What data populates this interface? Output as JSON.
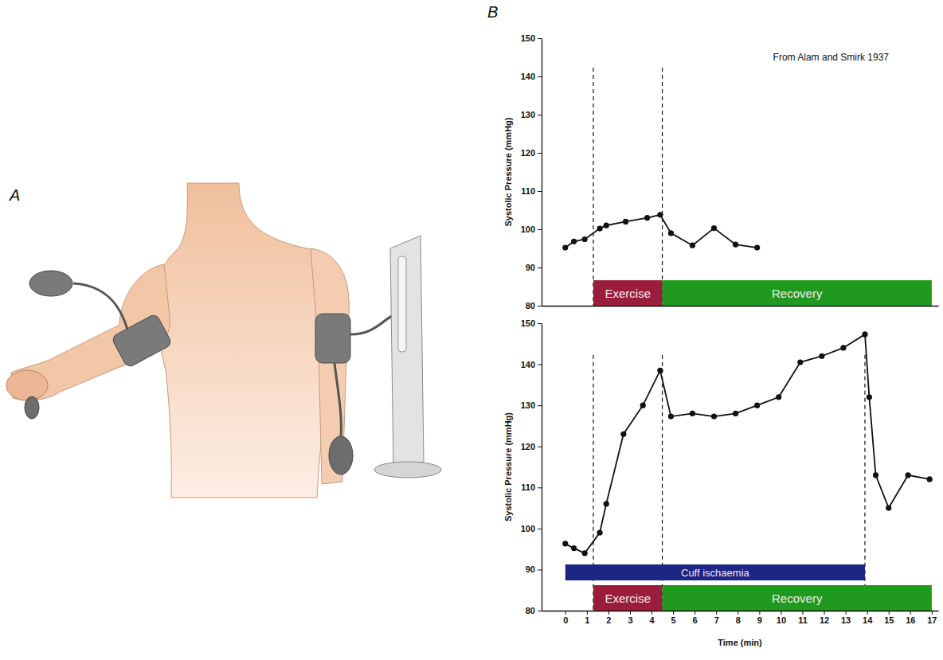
{
  "panel_labels": [
    "A",
    "B"
  ],
  "chart_data": [
    {
      "type": "line",
      "ylabel": "Systolic Pressure (mmHg)",
      "annotations": [
        "From Alam and Smirk 1937"
      ],
      "x": [
        0,
        0.4,
        0.9,
        1.6,
        1.9,
        2.8,
        3.8,
        4.4,
        4.9,
        5.9,
        6.9,
        7.9,
        8.9
      ],
      "values": [
        95.2,
        96.8,
        97.4,
        100.2,
        101,
        102,
        103,
        103.8,
        99,
        95.8,
        100.3,
        96,
        95.2
      ],
      "color": "#111111",
      "marker": "circle",
      "xlim": [
        -1.1,
        17.3
      ],
      "ylim": [
        80,
        150
      ],
      "yticks": [
        80,
        90,
        100,
        110,
        120,
        130,
        140,
        150
      ],
      "tick_labels": "y",
      "grid": false,
      "vlines": [
        1.3,
        4.5
      ],
      "phases": [
        {
          "label": "Exercise",
          "start": 1.3,
          "end": 4.5,
          "color": "#9b1d3c"
        },
        {
          "label": "Recovery",
          "start": 4.5,
          "end": 17,
          "color": "#1f9a1f"
        }
      ]
    },
    {
      "type": "line",
      "ylabel": "Systolic Pressure (mmHg)",
      "xlabel": "Time (min)",
      "x": [
        0,
        0.4,
        0.9,
        1.6,
        1.9,
        2.7,
        3.6,
        4.4,
        4.9,
        5.9,
        6.9,
        7.9,
        8.9,
        9.9,
        10.9,
        11.9,
        12.9,
        13.9,
        14.1,
        14.4,
        15,
        15.9,
        16.9
      ],
      "values": [
        96.3,
        95.2,
        94,
        99,
        106,
        123,
        130,
        138.5,
        127.3,
        128,
        127.3,
        128,
        130,
        132,
        140.5,
        142,
        144,
        147.3,
        132,
        113,
        105,
        113,
        112
      ],
      "color": "#111111",
      "marker": "circle",
      "xlim": [
        -1.1,
        17.3
      ],
      "ylim": [
        80,
        150
      ],
      "xticks": [
        0,
        1,
        2,
        3,
        4,
        5,
        6,
        7,
        8,
        9,
        10,
        11,
        12,
        13,
        14,
        15,
        16,
        17
      ],
      "yticks": [
        80,
        90,
        100,
        110,
        120,
        130,
        140,
        150
      ],
      "grid": false,
      "vlines": [
        1.3,
        4.5,
        13.9
      ],
      "phases": [
        {
          "label": "Exercise",
          "start": 1.3,
          "end": 4.5,
          "color": "#9b1d3c"
        },
        {
          "label": "Recovery",
          "start": 4.5,
          "end": 17,
          "color": "#1f9a1f"
        },
        {
          "label": "Cuff ischaemia",
          "start": 0,
          "end": 13.9,
          "color": "#1d2680"
        }
      ]
    }
  ]
}
